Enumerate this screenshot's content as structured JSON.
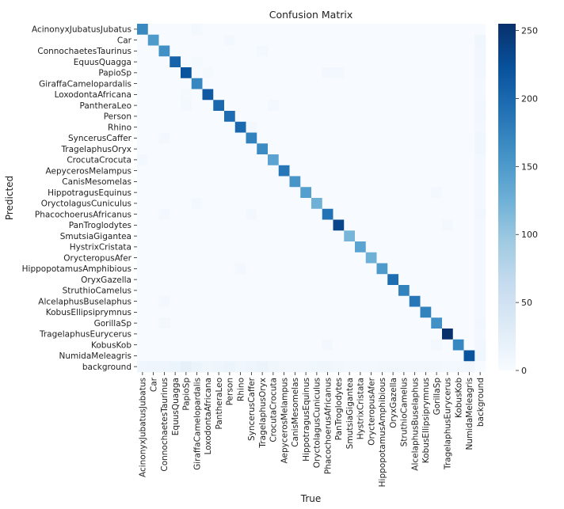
{
  "chart_data": {
    "type": "heatmap",
    "title": "Confusion Matrix",
    "xlabel": "True",
    "ylabel": "Predicted",
    "classes": [
      "AcinonyxJubatusJubatus",
      "Car",
      "ConnochaetesTaurinus",
      "EquusQuagga",
      "PapioSp",
      "GiraffaCamelopardalis",
      "LoxodontaAfricana",
      "PantheraLeo",
      "Person",
      "Rhino",
      "SyncerusCaffer",
      "TragelaphusOryx",
      "CrocutaCrocuta",
      "AepycerosMelampus",
      "CanisMesomelas",
      "HippotragusEquinus",
      "OryctolagusCuniculus",
      "PhacochoerusAfricanus",
      "PanTroglodytes",
      "SmutsiaGigantea",
      "HystrixCristata",
      "OrycteropusAfer",
      "HippopotamusAmphibious",
      "OryxGazella",
      "StruthioCamelus",
      "AlcelaphusBuselaphus",
      "KobusEllipsiprymnus",
      "GorillaSp",
      "TragelaphusEurycerus",
      "KobusKob",
      "NumidaMeleagris",
      "background"
    ],
    "diagonal": [
      168,
      150,
      160,
      205,
      220,
      170,
      215,
      200,
      195,
      200,
      175,
      165,
      140,
      185,
      155,
      145,
      125,
      190,
      235,
      120,
      140,
      125,
      150,
      195,
      175,
      185,
      175,
      160,
      255,
      170,
      220,
      0
    ],
    "off_diagonal": [
      {
        "row": 0,
        "col": 5,
        "value": 6
      },
      {
        "row": 1,
        "col": 8,
        "value": 6
      },
      {
        "row": 1,
        "col": 31,
        "value": 10
      },
      {
        "row": 2,
        "col": 11,
        "value": 6
      },
      {
        "row": 2,
        "col": 31,
        "value": 8
      },
      {
        "row": 3,
        "col": 5,
        "value": 4
      },
      {
        "row": 3,
        "col": 31,
        "value": 8
      },
      {
        "row": 4,
        "col": 6,
        "value": 4
      },
      {
        "row": 4,
        "col": 17,
        "value": 5
      },
      {
        "row": 4,
        "col": 18,
        "value": 5
      },
      {
        "row": 4,
        "col": 31,
        "value": 8
      },
      {
        "row": 5,
        "col": 31,
        "value": 6
      },
      {
        "row": 6,
        "col": 4,
        "value": 4
      },
      {
        "row": 6,
        "col": 31,
        "value": 6
      },
      {
        "row": 7,
        "col": 4,
        "value": 6
      },
      {
        "row": 7,
        "col": 12,
        "value": 6
      },
      {
        "row": 7,
        "col": 31,
        "value": 8
      },
      {
        "row": 8,
        "col": 31,
        "value": 8
      },
      {
        "row": 9,
        "col": 10,
        "value": 5
      },
      {
        "row": 9,
        "col": 31,
        "value": 6
      },
      {
        "row": 10,
        "col": 2,
        "value": 6
      },
      {
        "row": 10,
        "col": 31,
        "value": 10
      },
      {
        "row": 11,
        "col": 31,
        "value": 10
      },
      {
        "row": 12,
        "col": 0,
        "value": 6
      },
      {
        "row": 12,
        "col": 31,
        "value": 5
      },
      {
        "row": 13,
        "col": 31,
        "value": 5
      },
      {
        "row": 14,
        "col": 31,
        "value": 5
      },
      {
        "row": 15,
        "col": 27,
        "value": 5
      },
      {
        "row": 15,
        "col": 31,
        "value": 6
      },
      {
        "row": 16,
        "col": 5,
        "value": 6
      },
      {
        "row": 16,
        "col": 31,
        "value": 5
      },
      {
        "row": 17,
        "col": 2,
        "value": 6
      },
      {
        "row": 17,
        "col": 10,
        "value": 6
      },
      {
        "row": 17,
        "col": 31,
        "value": 8
      },
      {
        "row": 18,
        "col": 28,
        "value": 6
      },
      {
        "row": 18,
        "col": 31,
        "value": 6
      },
      {
        "row": 19,
        "col": 31,
        "value": 5
      },
      {
        "row": 20,
        "col": 31,
        "value": 5
      },
      {
        "row": 21,
        "col": 31,
        "value": 5
      },
      {
        "row": 22,
        "col": 9,
        "value": 6
      },
      {
        "row": 22,
        "col": 31,
        "value": 5
      },
      {
        "row": 23,
        "col": 31,
        "value": 5
      },
      {
        "row": 24,
        "col": 31,
        "value": 5
      },
      {
        "row": 25,
        "col": 2,
        "value": 6
      },
      {
        "row": 25,
        "col": 31,
        "value": 6
      },
      {
        "row": 26,
        "col": 31,
        "value": 6
      },
      {
        "row": 27,
        "col": 2,
        "value": 6
      },
      {
        "row": 27,
        "col": 31,
        "value": 8
      },
      {
        "row": 28,
        "col": 31,
        "value": 6
      },
      {
        "row": 29,
        "col": 17,
        "value": 6
      },
      {
        "row": 29,
        "col": 27,
        "value": 6
      },
      {
        "row": 29,
        "col": 31,
        "value": 8
      },
      {
        "row": 30,
        "col": 31,
        "value": 10
      },
      {
        "row": 31,
        "col": 0,
        "value": 10
      },
      {
        "row": 31,
        "col": 1,
        "value": 12
      },
      {
        "row": 31,
        "col": 2,
        "value": 12
      },
      {
        "row": 31,
        "col": 3,
        "value": 15
      },
      {
        "row": 31,
        "col": 4,
        "value": 22
      },
      {
        "row": 31,
        "col": 5,
        "value": 14
      },
      {
        "row": 31,
        "col": 6,
        "value": 10
      },
      {
        "row": 31,
        "col": 7,
        "value": 12
      },
      {
        "row": 31,
        "col": 8,
        "value": 14
      },
      {
        "row": 31,
        "col": 9,
        "value": 10
      },
      {
        "row": 31,
        "col": 10,
        "value": 12
      },
      {
        "row": 31,
        "col": 11,
        "value": 14
      },
      {
        "row": 31,
        "col": 12,
        "value": 10
      },
      {
        "row": 31,
        "col": 13,
        "value": 8
      },
      {
        "row": 31,
        "col": 14,
        "value": 8
      },
      {
        "row": 31,
        "col": 15,
        "value": 8
      },
      {
        "row": 31,
        "col": 16,
        "value": 10
      },
      {
        "row": 31,
        "col": 17,
        "value": 10
      },
      {
        "row": 31,
        "col": 18,
        "value": 8
      },
      {
        "row": 31,
        "col": 19,
        "value": 6
      },
      {
        "row": 31,
        "col": 20,
        "value": 6
      },
      {
        "row": 31,
        "col": 21,
        "value": 5
      },
      {
        "row": 31,
        "col": 22,
        "value": 8
      },
      {
        "row": 31,
        "col": 23,
        "value": 10
      },
      {
        "row": 31,
        "col": 24,
        "value": 8
      },
      {
        "row": 31,
        "col": 25,
        "value": 8
      },
      {
        "row": 31,
        "col": 26,
        "value": 8
      },
      {
        "row": 31,
        "col": 27,
        "value": 8
      },
      {
        "row": 31,
        "col": 28,
        "value": 6
      },
      {
        "row": 31,
        "col": 29,
        "value": 6
      },
      {
        "row": 31,
        "col": 30,
        "value": 8
      }
    ],
    "colorbar": {
      "min": 0,
      "max": 255,
      "ticks": [
        0,
        50,
        100,
        150,
        200,
        250
      ],
      "colormap": "Blues",
      "colors": [
        "#f7fbff",
        "#deebf7",
        "#c6dbef",
        "#9ecae1",
        "#6baed6",
        "#4292c6",
        "#2171b5",
        "#08519c",
        "#08306b"
      ]
    }
  }
}
